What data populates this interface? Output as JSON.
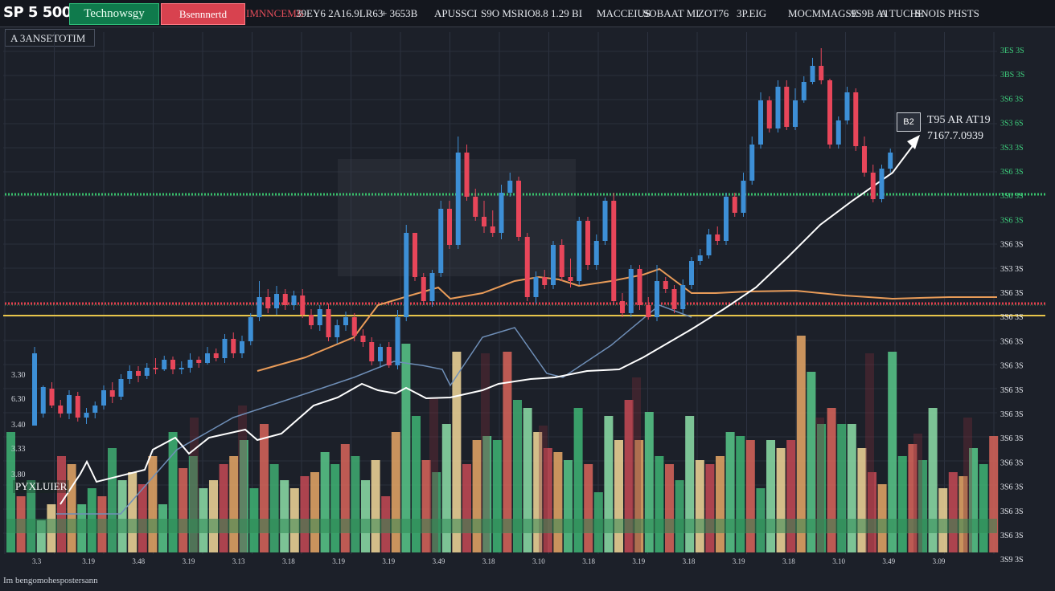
{
  "header": {
    "ticker": "SP 5 500",
    "tab_green": "Technowsgy",
    "tab_red": "Bsennnertd",
    "items": [
      {
        "text": "IMNNCEMB",
        "color": "#e34d5a"
      },
      {
        "text": "39EY6  2A16.9LR63",
        "color": "#e4e7ec"
      },
      {
        "text": "+  3653B",
        "color": "#e4e7ec"
      },
      {
        "text": "APUSSCI",
        "color": "#e4e7ec"
      },
      {
        "text": "S9O  MSRIO8.8  1.29  BI",
        "color": "#e4e7ec"
      },
      {
        "text": "MACCEIUS",
        "color": "#e4e7ec"
      },
      {
        "text": "SOBAAT MI",
        "color": "#e4e7ec"
      },
      {
        "text": "ZOT76",
        "color": "#e4e7ec"
      },
      {
        "text": "3P.EIG",
        "color": "#e4e7ec"
      },
      {
        "text": "MOCMMAGSE",
        "color": "#e4e7ec"
      },
      {
        "text": "9S9B  A1",
        "color": "#e4e7ec"
      },
      {
        "text": "A TUCHE",
        "color": "#e4e7ec"
      },
      {
        "text": "SNOIS PHSTS",
        "color": "#e4e7ec"
      }
    ]
  },
  "panel_label": "A 3ANSETOTIM",
  "price_tag": {
    "icon": "B2",
    "line1": "T95 AR AT19",
    "line2": "7167.7.0939"
  },
  "volume_label": "PYXLUIER",
  "footer": "Im bengomohespostersann",
  "right_axis": [
    "3ES 3S",
    "3BS 3S",
    "3S6 3S",
    "3S3 6S",
    "3S3 3S",
    "3S6 3S",
    "3S6 3S",
    "3S6 3S",
    "3S6 3S",
    "3S3 3S",
    "3S6 3S",
    "3S6 3S",
    "3S6 3S",
    "3S6 3S",
    "3S6 3S",
    "3S6 3S",
    "3S6 3S",
    "3S6 3S",
    "3S6 3S",
    "3S6 3S",
    "3S6 3S",
    "3S9 3S"
  ],
  "left_axis": [
    "3.30",
    "6.30",
    "3.40",
    "3.33",
    "3.80"
  ],
  "bottom_axis": [
    "3.3",
    "3.19",
    "3.48",
    "3.19",
    "3.13",
    "3.18",
    "3.19",
    "3.19",
    "3.49",
    "3.18",
    "3.10",
    "3.18",
    "3.19",
    "3.18",
    "3.19",
    "3.18",
    "3.10",
    "3.49",
    "3.09"
  ],
  "colors": {
    "bull": "#3d8fd6",
    "bear": "#e8465a",
    "support": "#e8c54a",
    "resistance_green": "#39c06b",
    "resistance_red": "#e4404e",
    "ma_orange": "#e89b58",
    "trend_white": "#ffffff",
    "ma_blue": "#6f8fb8"
  },
  "chart_data": {
    "type": "candlestick",
    "candles": [
      [
        530,
        440,
        520,
        432
      ],
      [
        515,
        482,
        520,
        480
      ],
      [
        484,
        505,
        508,
        476
      ],
      [
        505,
        515,
        520,
        498
      ],
      [
        515,
        492,
        522,
        486
      ],
      [
        493,
        520,
        525,
        488
      ],
      [
        520,
        514,
        528,
        508
      ],
      [
        514,
        505,
        521,
        500
      ],
      [
        505,
        486,
        510,
        480
      ],
      [
        486,
        494,
        502,
        476
      ],
      [
        494,
        472,
        498,
        466
      ],
      [
        472,
        462,
        478,
        455
      ],
      [
        462,
        468,
        476,
        456
      ],
      [
        468,
        458,
        472,
        452
      ],
      [
        458,
        460,
        466,
        446
      ],
      [
        460,
        448,
        462,
        443
      ],
      [
        448,
        460,
        466,
        444
      ],
      [
        460,
        458,
        466,
        450
      ],
      [
        458,
        448,
        464,
        440
      ],
      [
        448,
        452,
        458,
        444
      ],
      [
        452,
        440,
        454,
        432
      ],
      [
        440,
        446,
        450,
        434
      ],
      [
        446,
        422,
        452,
        416
      ],
      [
        422,
        440,
        446,
        414
      ],
      [
        440,
        425,
        446,
        418
      ],
      [
        425,
        395,
        430,
        390
      ],
      [
        395,
        370,
        400,
        350
      ],
      [
        370,
        384,
        390,
        360
      ],
      [
        384,
        366,
        392,
        356
      ],
      [
        366,
        380,
        386,
        360
      ],
      [
        380,
        368,
        386,
        362
      ],
      [
        368,
        392,
        396,
        360
      ],
      [
        392,
        405,
        410,
        385
      ],
      [
        405,
        385,
        412,
        380
      ],
      [
        385,
        420,
        425,
        378
      ],
      [
        420,
        405,
        428,
        398
      ],
      [
        405,
        395,
        412,
        388
      ],
      [
        395,
        418,
        425,
        390
      ],
      [
        418,
        426,
        432,
        410
      ],
      [
        426,
        450,
        455,
        420
      ],
      [
        450,
        432,
        458,
        428
      ],
      [
        432,
        455,
        458,
        426
      ],
      [
        455,
        395,
        460,
        386
      ],
      [
        395,
        290,
        400,
        280
      ],
      [
        290,
        345,
        350,
        320
      ],
      [
        345,
        375,
        380,
        340
      ],
      [
        375,
        340,
        382,
        336
      ],
      [
        340,
        260,
        345,
        250
      ],
      [
        260,
        305,
        310,
        250
      ],
      [
        305,
        190,
        310,
        170
      ],
      [
        190,
        245,
        250,
        180
      ],
      [
        245,
        270,
        275,
        235
      ],
      [
        270,
        282,
        290,
        250
      ],
      [
        282,
        290,
        295,
        262
      ],
      [
        290,
        240,
        298,
        230
      ],
      [
        240,
        225,
        245,
        215
      ],
      [
        225,
        295,
        300,
        220
      ],
      [
        295,
        370,
        375,
        290
      ],
      [
        370,
        345,
        378,
        338
      ],
      [
        345,
        355,
        360,
        336
      ],
      [
        355,
        305,
        360,
        300
      ],
      [
        305,
        345,
        350,
        298
      ],
      [
        345,
        350,
        358,
        322
      ],
      [
        350,
        275,
        355,
        270
      ],
      [
        275,
        330,
        336,
        270
      ],
      [
        330,
        300,
        336,
        292
      ],
      [
        300,
        250,
        305,
        246
      ],
      [
        250,
        375,
        380,
        240
      ],
      [
        375,
        390,
        395,
        365
      ],
      [
        390,
        335,
        395,
        330
      ],
      [
        335,
        380,
        386,
        330
      ],
      [
        380,
        395,
        398,
        370
      ],
      [
        395,
        350,
        400,
        330
      ],
      [
        350,
        360,
        365,
        345
      ],
      [
        360,
        385,
        390,
        355
      ],
      [
        385,
        355,
        390,
        348
      ],
      [
        355,
        325,
        360,
        320
      ],
      [
        325,
        318,
        330,
        310
      ],
      [
        318,
        292,
        322,
        285
      ],
      [
        292,
        300,
        305,
        282
      ],
      [
        300,
        245,
        305,
        240
      ],
      [
        245,
        265,
        270,
        240
      ],
      [
        265,
        225,
        270,
        215
      ],
      [
        225,
        180,
        230,
        170
      ],
      [
        180,
        125,
        185,
        115
      ],
      [
        125,
        160,
        165,
        120
      ],
      [
        160,
        108,
        165,
        100
      ],
      [
        108,
        158,
        162,
        100
      ],
      [
        158,
        125,
        162,
        110
      ],
      [
        125,
        102,
        128,
        95
      ],
      [
        102,
        82,
        105,
        72
      ],
      [
        82,
        100,
        105,
        60
      ],
      [
        100,
        180,
        185,
        98
      ],
      [
        180,
        150,
        185,
        145
      ],
      [
        150,
        115,
        155,
        108
      ],
      [
        115,
        182,
        188,
        110
      ],
      [
        182,
        215,
        220,
        170
      ],
      [
        215,
        248,
        252,
        205
      ],
      [
        248,
        210,
        252,
        205
      ],
      [
        210,
        190,
        215,
        185
      ]
    ]
  }
}
